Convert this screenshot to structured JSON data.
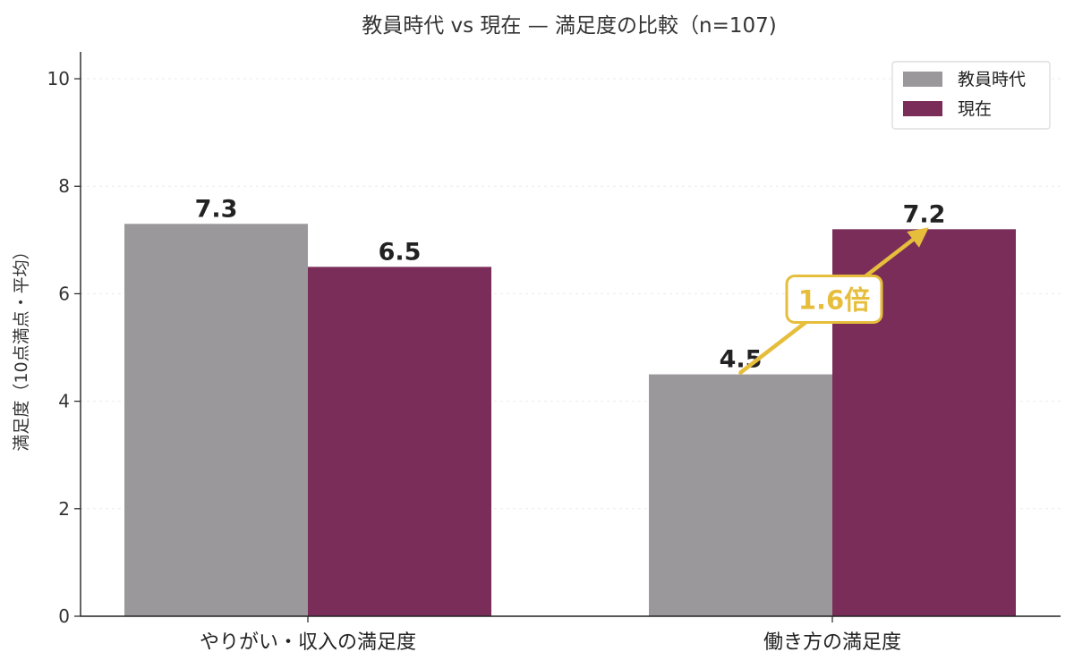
{
  "chart_data": {
    "type": "bar",
    "title": "教員時代 vs 現在 — 満足度の比較（n=107)",
    "ylabel": "満足度（10点満点・平均）",
    "xlabel": "",
    "categories": [
      "やりがい・収入の満足度",
      "働き方の満足度"
    ],
    "series": [
      {
        "name": "教員時代",
        "values": [
          7.3,
          4.5
        ],
        "color": "#9a989b"
      },
      {
        "name": "現在",
        "values": [
          6.5,
          7.2
        ],
        "color": "#7b2d59"
      }
    ],
    "value_labels": [
      [
        "7.3",
        "4.5"
      ],
      [
        "6.5",
        "7.2"
      ]
    ],
    "ylim": [
      0,
      10.5
    ],
    "yticks": [
      0,
      2,
      4,
      6,
      8,
      10
    ],
    "grid": true,
    "legend": {
      "position": "top-right"
    },
    "annotation": {
      "text": "1.6倍",
      "from_category": 1,
      "from_value": 4.5,
      "to_value": 7.2,
      "color": "#e6be3c"
    }
  }
}
